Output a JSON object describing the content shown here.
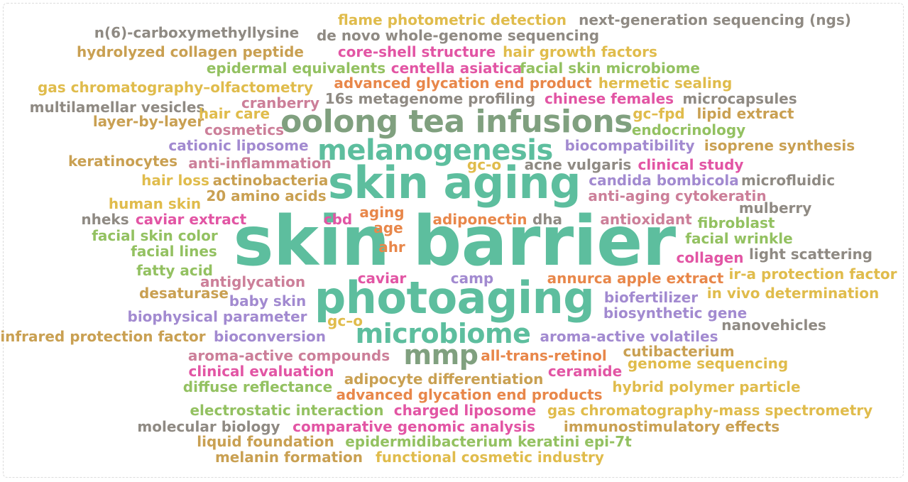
{
  "palette": {
    "teal": "#5dbe9e",
    "sage": "#80a07f",
    "gold": "#e0bc4c",
    "tan": "#c9a052",
    "orange": "#e8874a",
    "pink": "#e255a4",
    "purple": "#a28ad0",
    "gray": "#8f8a83",
    "lime": "#93c161",
    "rose": "#cc7f99",
    "olive": "#c2a85e"
  },
  "words": [
    {
      "text": "skin barrier",
      "color": "teal"
    },
    {
      "text": "skin aging",
      "color": "teal"
    },
    {
      "text": "photoaging",
      "color": "teal"
    },
    {
      "text": "oolong tea infusions",
      "color": "sage"
    },
    {
      "text": "melanogenesis",
      "color": "teal"
    },
    {
      "text": "microbiome",
      "color": "teal"
    },
    {
      "text": "mmp",
      "color": "sage"
    },
    {
      "text": "flame photometric detection",
      "color": "gold"
    },
    {
      "text": "next-generation sequencing (ngs)",
      "color": "gray"
    },
    {
      "text": "n(6)-carboxymethyllysine",
      "color": "gray"
    },
    {
      "text": "de novo whole-genome sequencing",
      "color": "gray"
    },
    {
      "text": "hydrolyzed collagen peptide",
      "color": "tan"
    },
    {
      "text": "core-shell structure",
      "color": "pink"
    },
    {
      "text": "hair growth factors",
      "color": "gold"
    },
    {
      "text": "epidermal equivalents",
      "color": "lime"
    },
    {
      "text": "centella asiatica",
      "color": "pink"
    },
    {
      "text": "facial skin microbiome",
      "color": "lime"
    },
    {
      "text": "gas chromatography–olfactometry",
      "color": "gold"
    },
    {
      "text": "advanced glycation end product",
      "color": "orange"
    },
    {
      "text": "hermetic sealing",
      "color": "gold"
    },
    {
      "text": "16s metagenome profiling",
      "color": "gray"
    },
    {
      "text": "chinese females",
      "color": "pink"
    },
    {
      "text": "microcapsules",
      "color": "gray"
    },
    {
      "text": "multilamellar vesicles",
      "color": "gray"
    },
    {
      "text": "cranberry",
      "color": "rose"
    },
    {
      "text": "hair care",
      "color": "gold"
    },
    {
      "text": "gc–fpd",
      "color": "gold"
    },
    {
      "text": "lipid extract",
      "color": "tan"
    },
    {
      "text": "layer-by-layer",
      "color": "tan"
    },
    {
      "text": "cosmetics",
      "color": "rose"
    },
    {
      "text": "endocrinology",
      "color": "lime"
    },
    {
      "text": "cationic liposome",
      "color": "purple"
    },
    {
      "text": "biocompatibility",
      "color": "purple"
    },
    {
      "text": "isoprene synthesis",
      "color": "tan"
    },
    {
      "text": "keratinocytes",
      "color": "tan"
    },
    {
      "text": "anti-inflammation",
      "color": "rose"
    },
    {
      "text": "gc-o",
      "color": "gold"
    },
    {
      "text": "acne vulgaris",
      "color": "gray"
    },
    {
      "text": "clinical study",
      "color": "pink"
    },
    {
      "text": "hair loss",
      "color": "gold"
    },
    {
      "text": "actinobacteria",
      "color": "tan"
    },
    {
      "text": "candida bombicola",
      "color": "purple"
    },
    {
      "text": "microfluidic",
      "color": "gray"
    },
    {
      "text": "20 amino acids",
      "color": "tan"
    },
    {
      "text": "anti-aging cytokeratin",
      "color": "rose"
    },
    {
      "text": "human skin",
      "color": "gold"
    },
    {
      "text": "mulberry",
      "color": "gray"
    },
    {
      "text": "nheks",
      "color": "gray"
    },
    {
      "text": "caviar extract",
      "color": "pink"
    },
    {
      "text": "cbd",
      "color": "pink"
    },
    {
      "text": "aging",
      "color": "orange"
    },
    {
      "text": "adiponectin",
      "color": "orange"
    },
    {
      "text": "dha",
      "color": "gray"
    },
    {
      "text": "antioxidant",
      "color": "rose"
    },
    {
      "text": "fibroblast",
      "color": "lime"
    },
    {
      "text": "facial skin color",
      "color": "lime"
    },
    {
      "text": "age",
      "color": "orange"
    },
    {
      "text": "facial wrinkle",
      "color": "lime"
    },
    {
      "text": "facial lines",
      "color": "lime"
    },
    {
      "text": "ahr",
      "color": "orange"
    },
    {
      "text": "collagen",
      "color": "pink"
    },
    {
      "text": "light scattering",
      "color": "gray"
    },
    {
      "text": "fatty acid",
      "color": "lime"
    },
    {
      "text": "caviar",
      "color": "pink"
    },
    {
      "text": "camp",
      "color": "purple"
    },
    {
      "text": "annurca apple extract",
      "color": "orange"
    },
    {
      "text": "ir-a protection factor",
      "color": "gold"
    },
    {
      "text": "antiglycation",
      "color": "rose"
    },
    {
      "text": "desaturase",
      "color": "tan"
    },
    {
      "text": "baby skin",
      "color": "purple"
    },
    {
      "text": "biofertilizer",
      "color": "purple"
    },
    {
      "text": "in vivo determination",
      "color": "gold"
    },
    {
      "text": "biophysical parameter",
      "color": "purple"
    },
    {
      "text": "biosynthetic gene",
      "color": "purple"
    },
    {
      "text": "gc–o",
      "color": "gold"
    },
    {
      "text": "nanovehicles",
      "color": "gray"
    },
    {
      "text": "infrared protection factor",
      "color": "tan"
    },
    {
      "text": "bioconversion",
      "color": "purple"
    },
    {
      "text": "aroma-active volatiles",
      "color": "purple"
    },
    {
      "text": "aroma-active compounds",
      "color": "rose"
    },
    {
      "text": "all-trans-retinol",
      "color": "orange"
    },
    {
      "text": "cutibacterium",
      "color": "tan"
    },
    {
      "text": "clinical evaluation",
      "color": "pink"
    },
    {
      "text": "genome sequencing",
      "color": "gold"
    },
    {
      "text": "adipocyte differentiation",
      "color": "tan"
    },
    {
      "text": "ceramide",
      "color": "pink"
    },
    {
      "text": "diffuse reflectance",
      "color": "lime"
    },
    {
      "text": "advanced glycation end products",
      "color": "orange"
    },
    {
      "text": "hybrid polymer particle",
      "color": "gold"
    },
    {
      "text": "electrostatic interaction",
      "color": "lime"
    },
    {
      "text": "charged liposome",
      "color": "pink"
    },
    {
      "text": "gas chromatography-mass spectrometry",
      "color": "gold"
    },
    {
      "text": "molecular biology",
      "color": "gray"
    },
    {
      "text": "comparative genomic analysis",
      "color": "pink"
    },
    {
      "text": "immunostimulatory effects",
      "color": "tan"
    },
    {
      "text": "liquid foundation",
      "color": "tan"
    },
    {
      "text": "epidermidibacterium keratini epi-7t",
      "color": "lime"
    },
    {
      "text": "melanin formation",
      "color": "tan"
    },
    {
      "text": "functional cosmetic industry",
      "color": "gold"
    }
  ]
}
